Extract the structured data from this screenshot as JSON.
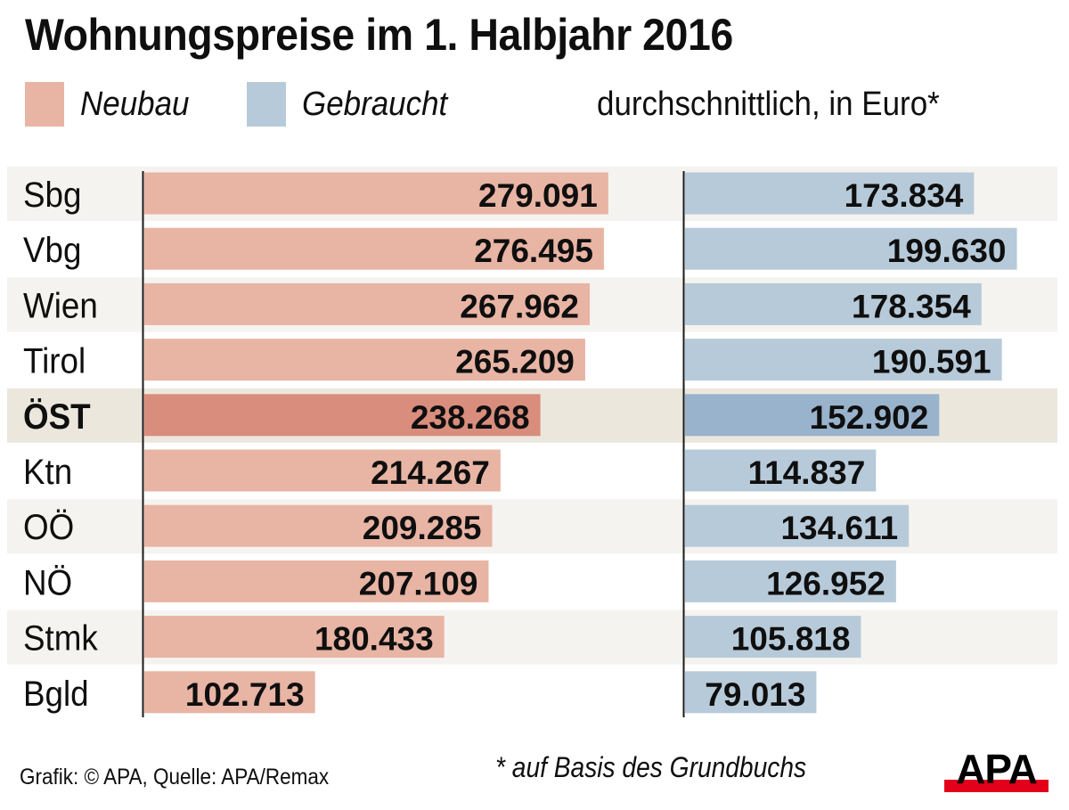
{
  "title": "Wohnungspreise im 1. Halbjahr 2016",
  "legend": [
    {
      "label": "Neubau",
      "color": "#e8b4a4"
    },
    {
      "label": "Gebraucht",
      "color": "#b7cad9"
    }
  ],
  "subtitle": "durchschnittlich, in Euro*",
  "colors": {
    "neubau": "#e8b4a4",
    "neubau_highlight": "#d98d7d",
    "gebraucht": "#b7cad9",
    "gebraucht_highlight": "#98b3cb",
    "band_light": "#f5f3ef",
    "band_highlight": "#ece7dd",
    "axis": "#1a1a1a",
    "apa_red": "#e3001b"
  },
  "chart_data": {
    "type": "bar",
    "orientation": "horizontal",
    "title": "Wohnungspreise im 1. Halbjahr 2016",
    "subtitle": "durchschnittlich, in Euro*",
    "categories": [
      "Sbg",
      "Vbg",
      "Wien",
      "Tirol",
      "ÖST",
      "Ktn",
      "OÖ",
      "NÖ",
      "Stmk",
      "Bgld"
    ],
    "highlight_category": "ÖST",
    "series": [
      {
        "name": "Neubau",
        "values": [
          279091,
          276495,
          267962,
          265209,
          238268,
          214267,
          209285,
          207109,
          180433,
          102713
        ],
        "labels": [
          "279.091",
          "276.495",
          "267.962",
          "265.209",
          "238.268",
          "214.267",
          "209.285",
          "207.109",
          "180.433",
          "102.713"
        ]
      },
      {
        "name": "Gebraucht",
        "values": [
          173834,
          199630,
          178354,
          190591,
          152902,
          114837,
          134611,
          126952,
          105818,
          79013
        ],
        "labels": [
          "173.834",
          "199.630",
          "178.354",
          "190.591",
          "152.902",
          "114.837",
          "134.611",
          "126.952",
          "105.818",
          "79.013"
        ]
      }
    ],
    "xlabel": "",
    "ylabel": "",
    "xlim": [
      0,
      300000
    ],
    "grid": false,
    "legend_position": "top-left"
  },
  "footer": {
    "source": "Grafik: © APA, Quelle: APA/Remax",
    "note": "* auf Basis des Grundbuchs",
    "logo_text": "APA"
  }
}
